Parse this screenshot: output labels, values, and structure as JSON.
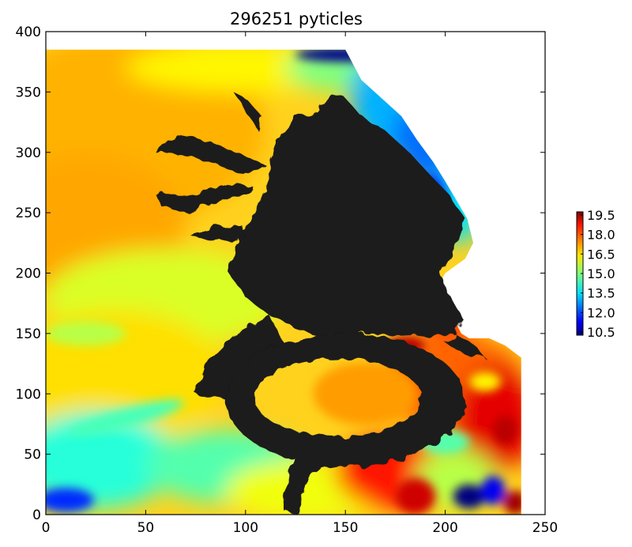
{
  "chart_data": {
    "type": "heatmap",
    "title": "296251 pyticles",
    "xlabel": "",
    "ylabel": "",
    "xlim": [
      0,
      250
    ],
    "ylim": [
      0,
      400
    ],
    "xticks": [
      0,
      50,
      100,
      150,
      200,
      250
    ],
    "yticks": [
      0,
      50,
      100,
      150,
      200,
      250,
      300,
      350,
      400
    ],
    "grid": false,
    "colormap": "jet",
    "colorbar": {
      "range": [
        10.5,
        19.5
      ],
      "ticks": [
        "19.5",
        "18.0",
        "16.5",
        "15.0",
        "13.5",
        "12.0",
        "10.5"
      ],
      "placement": "right"
    },
    "field_extent": {
      "x": [
        0,
        238
      ],
      "y": [
        0,
        385
      ]
    },
    "particle_color": "#1a1a1a",
    "field_regions": [
      {
        "desc": "warm yellow-orange west",
        "value": 16.5
      },
      {
        "desc": "cold coastal band northeast",
        "value": 12.5
      },
      {
        "desc": "warm red southeast",
        "value": 18.5
      },
      {
        "desc": "cold eddy southeast",
        "value": 11.0
      },
      {
        "desc": "cyan southwest",
        "value": 14.0
      }
    ]
  }
}
